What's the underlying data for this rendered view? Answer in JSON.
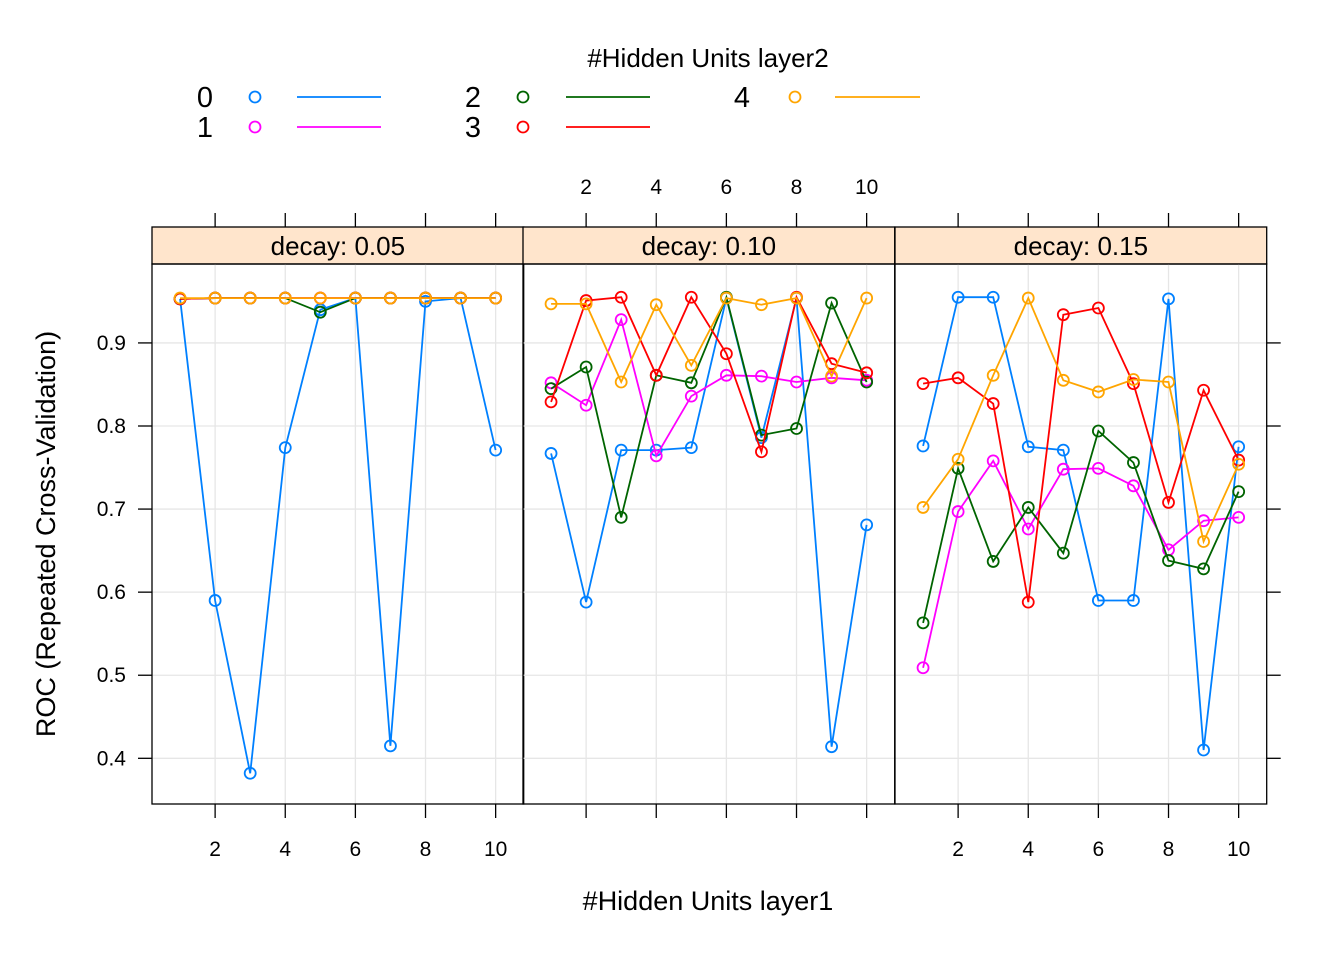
{
  "chart_data": {
    "type": "line",
    "legend": {
      "title": "#Hidden Units layer2",
      "position": "top",
      "entries": [
        {
          "label": "0",
          "color": "#0080FF"
        },
        {
          "label": "1",
          "color": "#FF00FF"
        },
        {
          "label": "2",
          "color": "#006400"
        },
        {
          "label": "3",
          "color": "#FF0000"
        },
        {
          "label": "4",
          "color": "#FFA500"
        }
      ]
    },
    "xlabel": "#Hidden Units layer1",
    "ylabel": "ROC (Repeated Cross-Validation)",
    "x": [
      1,
      2,
      3,
      4,
      5,
      6,
      7,
      8,
      9,
      10
    ],
    "xlim": [
      0.2,
      10.8
    ],
    "ylim": [
      0.345,
      0.995
    ],
    "x_ticks": [
      2,
      4,
      6,
      8,
      10
    ],
    "y_ticks": [
      0.4,
      0.5,
      0.6,
      0.7,
      0.8,
      0.9
    ],
    "y_tick_labels": [
      "0.4",
      "0.5",
      "0.6",
      "0.7",
      "0.8",
      "0.9"
    ],
    "x_tick_labels": [
      "2",
      "4",
      "6",
      "8",
      "10"
    ],
    "grid": true,
    "panels": [
      {
        "strip": "decay: 0.05",
        "series": [
          {
            "name": "0",
            "values": [
              0.953,
              0.59,
              0.382,
              0.774,
              0.94,
              0.954,
              0.415,
              0.95,
              0.954,
              0.771
            ]
          },
          {
            "name": "1",
            "values": [
              0.953,
              0.954,
              0.954,
              0.954,
              0.954,
              0.954,
              0.954,
              0.954,
              0.954,
              0.954
            ]
          },
          {
            "name": "2",
            "values": [
              0.953,
              0.954,
              0.954,
              0.954,
              0.937,
              0.954,
              0.954,
              0.954,
              0.954,
              0.954
            ]
          },
          {
            "name": "3",
            "values": [
              0.953,
              0.954,
              0.954,
              0.954,
              0.954,
              0.954,
              0.954,
              0.954,
              0.954,
              0.954
            ]
          },
          {
            "name": "4",
            "values": [
              0.954,
              0.954,
              0.954,
              0.954,
              0.954,
              0.954,
              0.954,
              0.954,
              0.954,
              0.954
            ]
          }
        ]
      },
      {
        "strip": "decay: 0.10",
        "series": [
          {
            "name": "0",
            "values": [
              0.767,
              0.588,
              0.771,
              0.771,
              0.774,
              0.954,
              0.786,
              0.954,
              0.414,
              0.681
            ]
          },
          {
            "name": "1",
            "values": [
              0.852,
              0.825,
              0.928,
              0.764,
              0.836,
              0.861,
              0.86,
              0.853,
              0.858,
              0.855
            ]
          },
          {
            "name": "2",
            "values": [
              0.845,
              0.871,
              0.69,
              0.861,
              0.852,
              0.955,
              0.789,
              0.797,
              0.948,
              0.853
            ]
          },
          {
            "name": "3",
            "values": [
              0.829,
              0.951,
              0.955,
              0.861,
              0.955,
              0.887,
              0.769,
              0.955,
              0.875,
              0.864
            ]
          },
          {
            "name": "4",
            "values": [
              0.947,
              0.947,
              0.853,
              0.946,
              0.873,
              0.954,
              0.946,
              0.954,
              0.86,
              0.954
            ]
          }
        ]
      },
      {
        "strip": "decay: 0.15",
        "series": [
          {
            "name": "0",
            "values": [
              0.776,
              0.955,
              0.955,
              0.775,
              0.771,
              0.59,
              0.59,
              0.953,
              0.41,
              0.775
            ]
          },
          {
            "name": "1",
            "values": [
              0.509,
              0.697,
              0.758,
              0.676,
              0.748,
              0.749,
              0.728,
              0.651,
              0.686,
              0.69
            ]
          },
          {
            "name": "2",
            "values": [
              0.563,
              0.749,
              0.637,
              0.702,
              0.647,
              0.794,
              0.756,
              0.638,
              0.628,
              0.721
            ]
          },
          {
            "name": "3",
            "values": [
              0.851,
              0.858,
              0.827,
              0.588,
              0.934,
              0.942,
              0.851,
              0.708,
              0.843,
              0.759
            ]
          },
          {
            "name": "4",
            "values": [
              0.702,
              0.76,
              0.861,
              0.954,
              0.855,
              0.841,
              0.856,
              0.853,
              0.661,
              0.754
            ]
          }
        ]
      }
    ]
  }
}
